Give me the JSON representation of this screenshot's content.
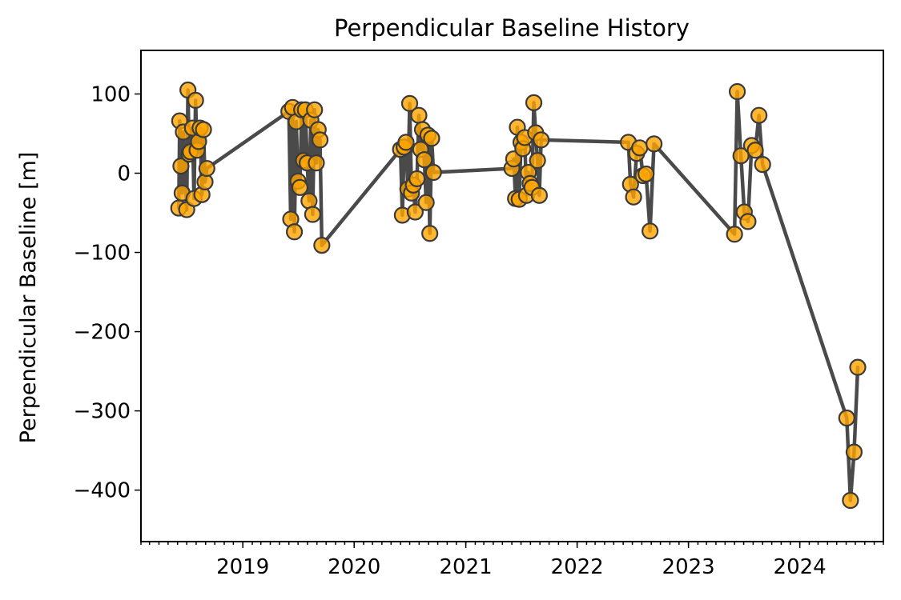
{
  "colors": {
    "marker_fill": "#FFA500",
    "marker_edge": "#3a3a3a",
    "line": "#4a4a4a"
  },
  "chart_data": {
    "type": "line",
    "title": "Perpendicular Baseline History",
    "xlabel": "",
    "ylabel": "Perpendicular Baseline [m]",
    "x_is_date": true,
    "xlim": [
      "2018-02-01",
      "2024-10-01"
    ],
    "ylim": [
      -465,
      155
    ],
    "yticks": [
      100,
      0,
      -100,
      -200,
      -300,
      -400
    ],
    "ytick_labels": [
      "100",
      "0",
      "−100",
      "−200",
      "−300",
      "−400"
    ],
    "xticks": [
      "2019-01-01",
      "2020-01-01",
      "2021-01-01",
      "2022-01-01",
      "2023-01-01",
      "2024-01-01"
    ],
    "xtick_labels": [
      "2019",
      "2020",
      "2021",
      "2022",
      "2023",
      "2024"
    ],
    "minor_xticks": "monthly",
    "grid": false,
    "markers": true,
    "series": [
      {
        "points": [
          [
            "2018-06-05",
            -44
          ],
          [
            "2018-06-08",
            66
          ],
          [
            "2018-06-12",
            9
          ],
          [
            "2018-06-16",
            -25
          ],
          [
            "2018-06-20",
            52
          ],
          [
            "2018-07-01",
            -46
          ],
          [
            "2018-07-05",
            105
          ],
          [
            "2018-07-09",
            24
          ],
          [
            "2018-07-13",
            27
          ],
          [
            "2018-07-20",
            57
          ],
          [
            "2018-07-25",
            -32
          ],
          [
            "2018-07-30",
            92
          ],
          [
            "2018-08-04",
            29
          ],
          [
            "2018-08-09",
            40
          ],
          [
            "2018-08-14",
            57
          ],
          [
            "2018-08-20",
            -27
          ],
          [
            "2018-08-25",
            55
          ],
          [
            "2018-08-30",
            -11
          ],
          [
            "2018-09-05",
            6
          ],
          [
            "2019-06-01",
            78
          ],
          [
            "2019-06-07",
            -58
          ],
          [
            "2019-06-13",
            83
          ],
          [
            "2019-06-19",
            -74
          ],
          [
            "2019-06-25",
            65
          ],
          [
            "2019-07-01",
            -10
          ],
          [
            "2019-07-07",
            -18
          ],
          [
            "2019-07-13",
            80
          ],
          [
            "2019-07-19",
            16
          ],
          [
            "2019-07-25",
            80
          ],
          [
            "2019-07-31",
            13
          ],
          [
            "2019-08-06",
            -35
          ],
          [
            "2019-08-12",
            67
          ],
          [
            "2019-08-18",
            -52
          ],
          [
            "2019-08-24",
            80
          ],
          [
            "2019-08-30",
            13
          ],
          [
            "2019-09-05",
            55
          ],
          [
            "2019-09-11",
            42
          ],
          [
            "2019-09-17",
            -91
          ],
          [
            "2020-06-01",
            30
          ],
          [
            "2020-06-07",
            -53
          ],
          [
            "2020-06-13",
            33
          ],
          [
            "2020-06-19",
            39
          ],
          [
            "2020-06-25",
            -20
          ],
          [
            "2020-07-01",
            88
          ],
          [
            "2020-07-07",
            -25
          ],
          [
            "2020-07-13",
            -15
          ],
          [
            "2020-07-19",
            -49
          ],
          [
            "2020-07-25",
            -7
          ],
          [
            "2020-07-31",
            73
          ],
          [
            "2020-08-06",
            30
          ],
          [
            "2020-08-12",
            55
          ],
          [
            "2020-08-18",
            17
          ],
          [
            "2020-08-24",
            -37
          ],
          [
            "2020-08-30",
            48
          ],
          [
            "2020-09-05",
            -76
          ],
          [
            "2020-09-11",
            44
          ],
          [
            "2020-09-17",
            1
          ],
          [
            "2021-06-01",
            6
          ],
          [
            "2021-06-07",
            18
          ],
          [
            "2021-06-13",
            -32
          ],
          [
            "2021-06-19",
            58
          ],
          [
            "2021-06-25",
            -33
          ],
          [
            "2021-07-01",
            39
          ],
          [
            "2021-07-07",
            31
          ],
          [
            "2021-07-13",
            45
          ],
          [
            "2021-07-19",
            -28
          ],
          [
            "2021-07-25",
            1
          ],
          [
            "2021-07-31",
            -13
          ],
          [
            "2021-08-06",
            -18
          ],
          [
            "2021-08-12",
            89
          ],
          [
            "2021-08-18",
            51
          ],
          [
            "2021-08-24",
            16
          ],
          [
            "2021-08-30",
            -28
          ],
          [
            "2021-09-05",
            42
          ],
          [
            "2022-06-18",
            39
          ],
          [
            "2022-06-25",
            -14
          ],
          [
            "2022-07-05",
            -30
          ],
          [
            "2022-07-15",
            25
          ],
          [
            "2022-07-25",
            32
          ],
          [
            "2022-08-05",
            -3
          ],
          [
            "2022-08-15",
            -1
          ],
          [
            "2022-08-28",
            -73
          ],
          [
            "2022-09-10",
            37
          ],
          [
            "2023-06-01",
            -77
          ],
          [
            "2023-06-10",
            103
          ],
          [
            "2023-06-22",
            22
          ],
          [
            "2023-07-03",
            -49
          ],
          [
            "2023-07-15",
            -61
          ],
          [
            "2023-07-27",
            35
          ],
          [
            "2023-08-08",
            29
          ],
          [
            "2023-08-20",
            73
          ],
          [
            "2023-09-01",
            11
          ],
          [
            "2024-06-03",
            -309
          ],
          [
            "2024-06-15",
            -413
          ],
          [
            "2024-06-27",
            -352
          ],
          [
            "2024-07-09",
            -245
          ]
        ]
      }
    ]
  }
}
